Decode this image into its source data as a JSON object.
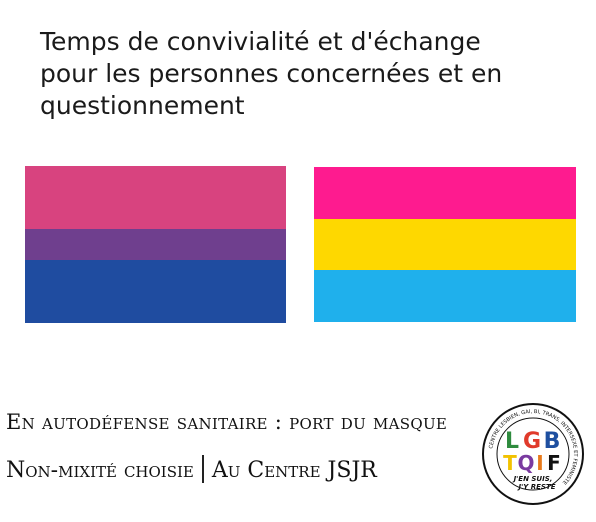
{
  "headline": {
    "line1": "Temps de convivialité et d'échange",
    "line2": "pour les personnes concernées et en",
    "line3": "questionnement"
  },
  "flags": {
    "bisexual": {
      "colors": [
        "#d8437f",
        "#6f3f8e",
        "#1f4ca0"
      ],
      "ratios": [
        2,
        1,
        2
      ]
    },
    "pansexual": {
      "colors": [
        "#fe1b8f",
        "#fed800",
        "#1fb0ec"
      ],
      "ratios": [
        1,
        1,
        1
      ]
    }
  },
  "info": {
    "line1": "En autodéfense sanitaire : port du masque",
    "line2_left": "Non-mixité choisie",
    "line2_right": "Au Centre JSJR"
  },
  "badge": {
    "letters_top": [
      "L",
      "G",
      "B"
    ],
    "letters_bottom": [
      "T",
      "Q",
      "I",
      "F"
    ],
    "ring_text": "CENTRE LESBIEN, GAI, BI, TRANS, INTERSEXE ET FEMINISTE",
    "motto_1": "J'EN SUIS,",
    "motto_2": "J'Y RESTE",
    "colors": [
      "#2e8b3e",
      "#e03a2b",
      "#1e4fa0",
      "#f2c200",
      "#7a3aa0",
      "#e87a1b",
      "#111111"
    ]
  }
}
